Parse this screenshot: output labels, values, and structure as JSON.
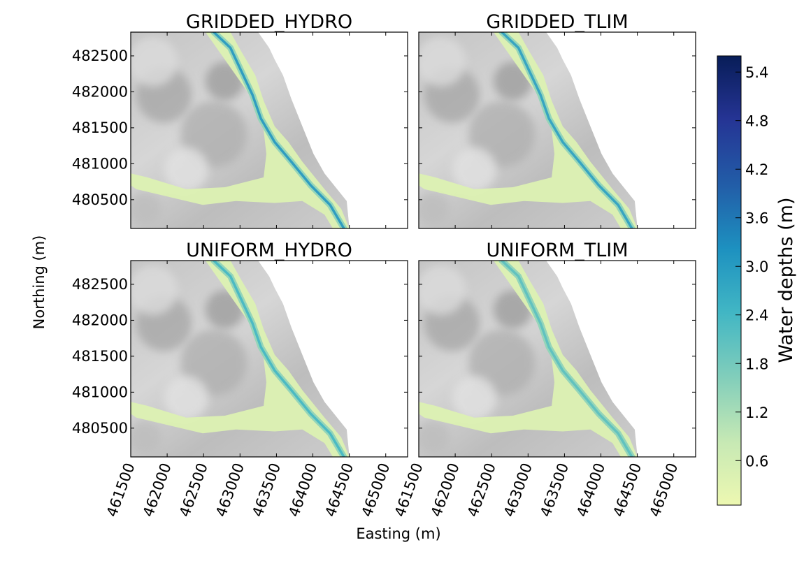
{
  "chart_data": {
    "type": "heatmap",
    "panels": [
      {
        "title": "GRIDDED_HYDRO",
        "max_depth_approx": 3.1
      },
      {
        "title": "GRIDDED_TLIM",
        "max_depth_approx": 2.9
      },
      {
        "title": "UNIFORM_HYDRO",
        "max_depth_approx": 2.4
      },
      {
        "title": "UNIFORM_TLIM",
        "max_depth_approx": 2.1
      }
    ],
    "xlabel": "Easting (m)",
    "ylabel": "Northing (m)",
    "x_ticks": [
      "461500",
      "462000",
      "462500",
      "463000",
      "463500",
      "464000",
      "464500",
      "465000"
    ],
    "y_ticks": [
      "482500",
      "482000",
      "481500",
      "481000",
      "480500"
    ],
    "xlim": [
      461500,
      465300
    ],
    "ylim": [
      480100,
      482830
    ],
    "colorbar": {
      "label": "Water depths (m)",
      "ticks": [
        "5.4",
        "4.8",
        "4.2",
        "3.6",
        "3.0",
        "2.4",
        "1.8",
        "1.2",
        "0.6"
      ],
      "range": [
        0.05,
        5.6
      ],
      "colormap": "YlGnBu",
      "colors": [
        "#edf8b1",
        "#c7e9b4",
        "#7fcdbb",
        "#41b6c4",
        "#1d91c0",
        "#225ea8",
        "#253494",
        "#081d58"
      ]
    },
    "background": "grey hillshade terrain",
    "grid": false
  }
}
